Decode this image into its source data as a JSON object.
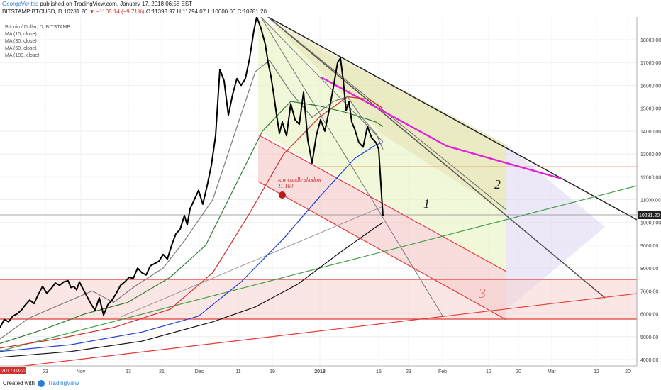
{
  "header": {
    "author": "GeorgeVeritas",
    "published_text": "published on TradingView.com, January 17, 2018 06:58 EST",
    "symbol": "BITSTAMP:BTCUSD, D",
    "price": "10281.20",
    "change": "▼ −1105.14 (−9.71%)",
    "ohlc": "O:11393.97  H:11794.07  L:10000.00  C:10281.20"
  },
  "legend": {
    "title": "Bitcoin / Dollar, D, BITSTAMP",
    "indicators": [
      "MA (10, close)",
      "MA (30, close)",
      "MA (60, close)",
      "MA (100, close)"
    ]
  },
  "annotations": {
    "shadow_label": "low candle shadow",
    "shadow_value": "11,160",
    "mark1": "1",
    "mark2": "2",
    "mark3": "3"
  },
  "price_tag": "10281.20",
  "date_tag": "2017-03-23",
  "footer": {
    "created": "Created with",
    "brand": "TradingView"
  },
  "chart_data": {
    "type": "line",
    "title": "Bitcoin / Dollar, D, BITSTAMP",
    "xlabel": "",
    "ylabel": "",
    "ylim": [
      3700,
      19000
    ],
    "y_ticks": [
      4000,
      5000,
      6000,
      7000,
      8000,
      9000,
      10000,
      11000,
      12000,
      13000,
      14000,
      15000,
      16000,
      17000,
      18000
    ],
    "x_tick_labels": [
      "23",
      "Nov",
      "13",
      "21",
      "Dec",
      "11",
      "19",
      "2018",
      "15",
      "23",
      "Feb",
      "12",
      "20",
      "Mar",
      "12",
      "20"
    ],
    "series": [
      {
        "name": "BTCUSD",
        "color": "#000000",
        "points": [
          [
            0,
            5400
          ],
          [
            6,
            5750
          ],
          [
            12,
            5650
          ],
          [
            18,
            5900
          ],
          [
            24,
            6000
          ],
          [
            30,
            6150
          ],
          [
            36,
            6400
          ],
          [
            42,
            6600
          ],
          [
            48,
            6450
          ],
          [
            54,
            6850
          ],
          [
            60,
            7200
          ],
          [
            66,
            6900
          ],
          [
            72,
            7100
          ],
          [
            78,
            7350
          ],
          [
            84,
            7250
          ],
          [
            90,
            7400
          ],
          [
            96,
            7450
          ],
          [
            100,
            7150
          ],
          [
            104,
            7200
          ],
          [
            108,
            7050
          ],
          [
            112,
            7400
          ],
          [
            116,
            7150
          ],
          [
            122,
            6800
          ],
          [
            128,
            6450
          ],
          [
            134,
            6150
          ],
          [
            140,
            6700
          ],
          [
            146,
            5950
          ],
          [
            152,
            6400
          ],
          [
            158,
            6600
          ],
          [
            164,
            6900
          ],
          [
            170,
            7250
          ],
          [
            176,
            7400
          ],
          [
            182,
            7600
          ],
          [
            188,
            7550
          ],
          [
            194,
            8000
          ],
          [
            200,
            7800
          ],
          [
            206,
            7700
          ],
          [
            212,
            8100
          ],
          [
            218,
            8200
          ],
          [
            224,
            8300
          ],
          [
            230,
            8600
          ],
          [
            236,
            8400
          ],
          [
            242,
            9000
          ],
          [
            248,
            9500
          ],
          [
            254,
            9700
          ],
          [
            260,
            10300
          ],
          [
            264,
            9900
          ],
          [
            268,
            10600
          ],
          [
            274,
            11000
          ],
          [
            280,
            11400
          ],
          [
            286,
            10800
          ],
          [
            292,
            11600
          ],
          [
            298,
            12500
          ],
          [
            304,
            13800
          ],
          [
            310,
            16700
          ],
          [
            316,
            16200
          ],
          [
            322,
            14700
          ],
          [
            328,
            15600
          ],
          [
            334,
            16300
          ],
          [
            340,
            16000
          ],
          [
            346,
            16300
          ],
          [
            352,
            17200
          ],
          [
            358,
            18400
          ],
          [
            362,
            19000
          ],
          [
            368,
            18500
          ],
          [
            374,
            17800
          ],
          [
            378,
            17000
          ],
          [
            382,
            16400
          ],
          [
            386,
            15600
          ],
          [
            390,
            14700
          ],
          [
            394,
            13900
          ],
          [
            398,
            14400
          ],
          [
            404,
            13800
          ],
          [
            410,
            15200
          ],
          [
            416,
            14500
          ],
          [
            422,
            14300
          ],
          [
            428,
            15700
          ],
          [
            434,
            13600
          ],
          [
            440,
            12600
          ],
          [
            446,
            13800
          ],
          [
            452,
            14500
          ],
          [
            458,
            14000
          ],
          [
            464,
            14900
          ],
          [
            470,
            15900
          ],
          [
            476,
            17000
          ],
          [
            480,
            17200
          ],
          [
            484,
            16200
          ],
          [
            488,
            14900
          ],
          [
            492,
            15300
          ],
          [
            496,
            14400
          ],
          [
            500,
            14100
          ],
          [
            506,
            13500
          ],
          [
            512,
            13300
          ],
          [
            518,
            14200
          ],
          [
            524,
            13700
          ],
          [
            530,
            13500
          ],
          [
            534,
            13200
          ],
          [
            538,
            11200
          ],
          [
            540,
            10281
          ]
        ]
      },
      {
        "name": "MA (10, close)",
        "color": "#7a7a7a",
        "points": [
          [
            0,
            4900
          ],
          [
            40,
            5800
          ],
          [
            100,
            6600
          ],
          [
            130,
            7000
          ],
          [
            160,
            6500
          ],
          [
            190,
            7200
          ],
          [
            230,
            8000
          ],
          [
            260,
            9200
          ],
          [
            300,
            11000
          ],
          [
            330,
            13800
          ],
          [
            360,
            16600
          ],
          [
            380,
            17100
          ],
          [
            410,
            15700
          ],
          [
            440,
            14600
          ],
          [
            470,
            15300
          ],
          [
            490,
            15500
          ],
          [
            510,
            14600
          ],
          [
            530,
            13900
          ],
          [
            540,
            13200
          ]
        ]
      },
      {
        "name": "MA (30, close)",
        "color": "#2e7d32",
        "points": [
          [
            0,
            4700
          ],
          [
            60,
            5300
          ],
          [
            120,
            6000
          ],
          [
            180,
            6500
          ],
          [
            240,
            7600
          ],
          [
            290,
            9000
          ],
          [
            330,
            11500
          ],
          [
            370,
            14000
          ],
          [
            410,
            15300
          ],
          [
            450,
            15100
          ],
          [
            490,
            14800
          ],
          [
            530,
            14400
          ],
          [
            540,
            14200
          ]
        ]
      },
      {
        "name": "MA (60, close)",
        "color": "#d32f2f",
        "points": [
          [
            0,
            4500
          ],
          [
            80,
            4900
          ],
          [
            160,
            5400
          ],
          [
            240,
            6200
          ],
          [
            300,
            7800
          ],
          [
            350,
            10300
          ],
          [
            400,
            13000
          ],
          [
            450,
            14600
          ],
          [
            490,
            15500
          ],
          [
            520,
            15400
          ],
          [
            540,
            15000
          ]
        ]
      },
      {
        "name": "MA (100, close)",
        "color": "#1e40d8",
        "points": [
          [
            0,
            4350
          ],
          [
            100,
            4650
          ],
          [
            200,
            5200
          ],
          [
            280,
            5900
          ],
          [
            340,
            7400
          ],
          [
            400,
            9300
          ],
          [
            450,
            11100
          ],
          [
            500,
            12800
          ],
          [
            530,
            13400
          ],
          [
            540,
            13500
          ]
        ]
      },
      {
        "name": "MA 200",
        "color": "#111111",
        "points": [
          [
            0,
            4100
          ],
          [
            100,
            4350
          ],
          [
            200,
            4800
          ],
          [
            300,
            5650
          ],
          [
            360,
            6300
          ],
          [
            420,
            7300
          ],
          [
            480,
            8700
          ],
          [
            530,
            9800
          ],
          [
            540,
            10000
          ]
        ]
      }
    ]
  }
}
